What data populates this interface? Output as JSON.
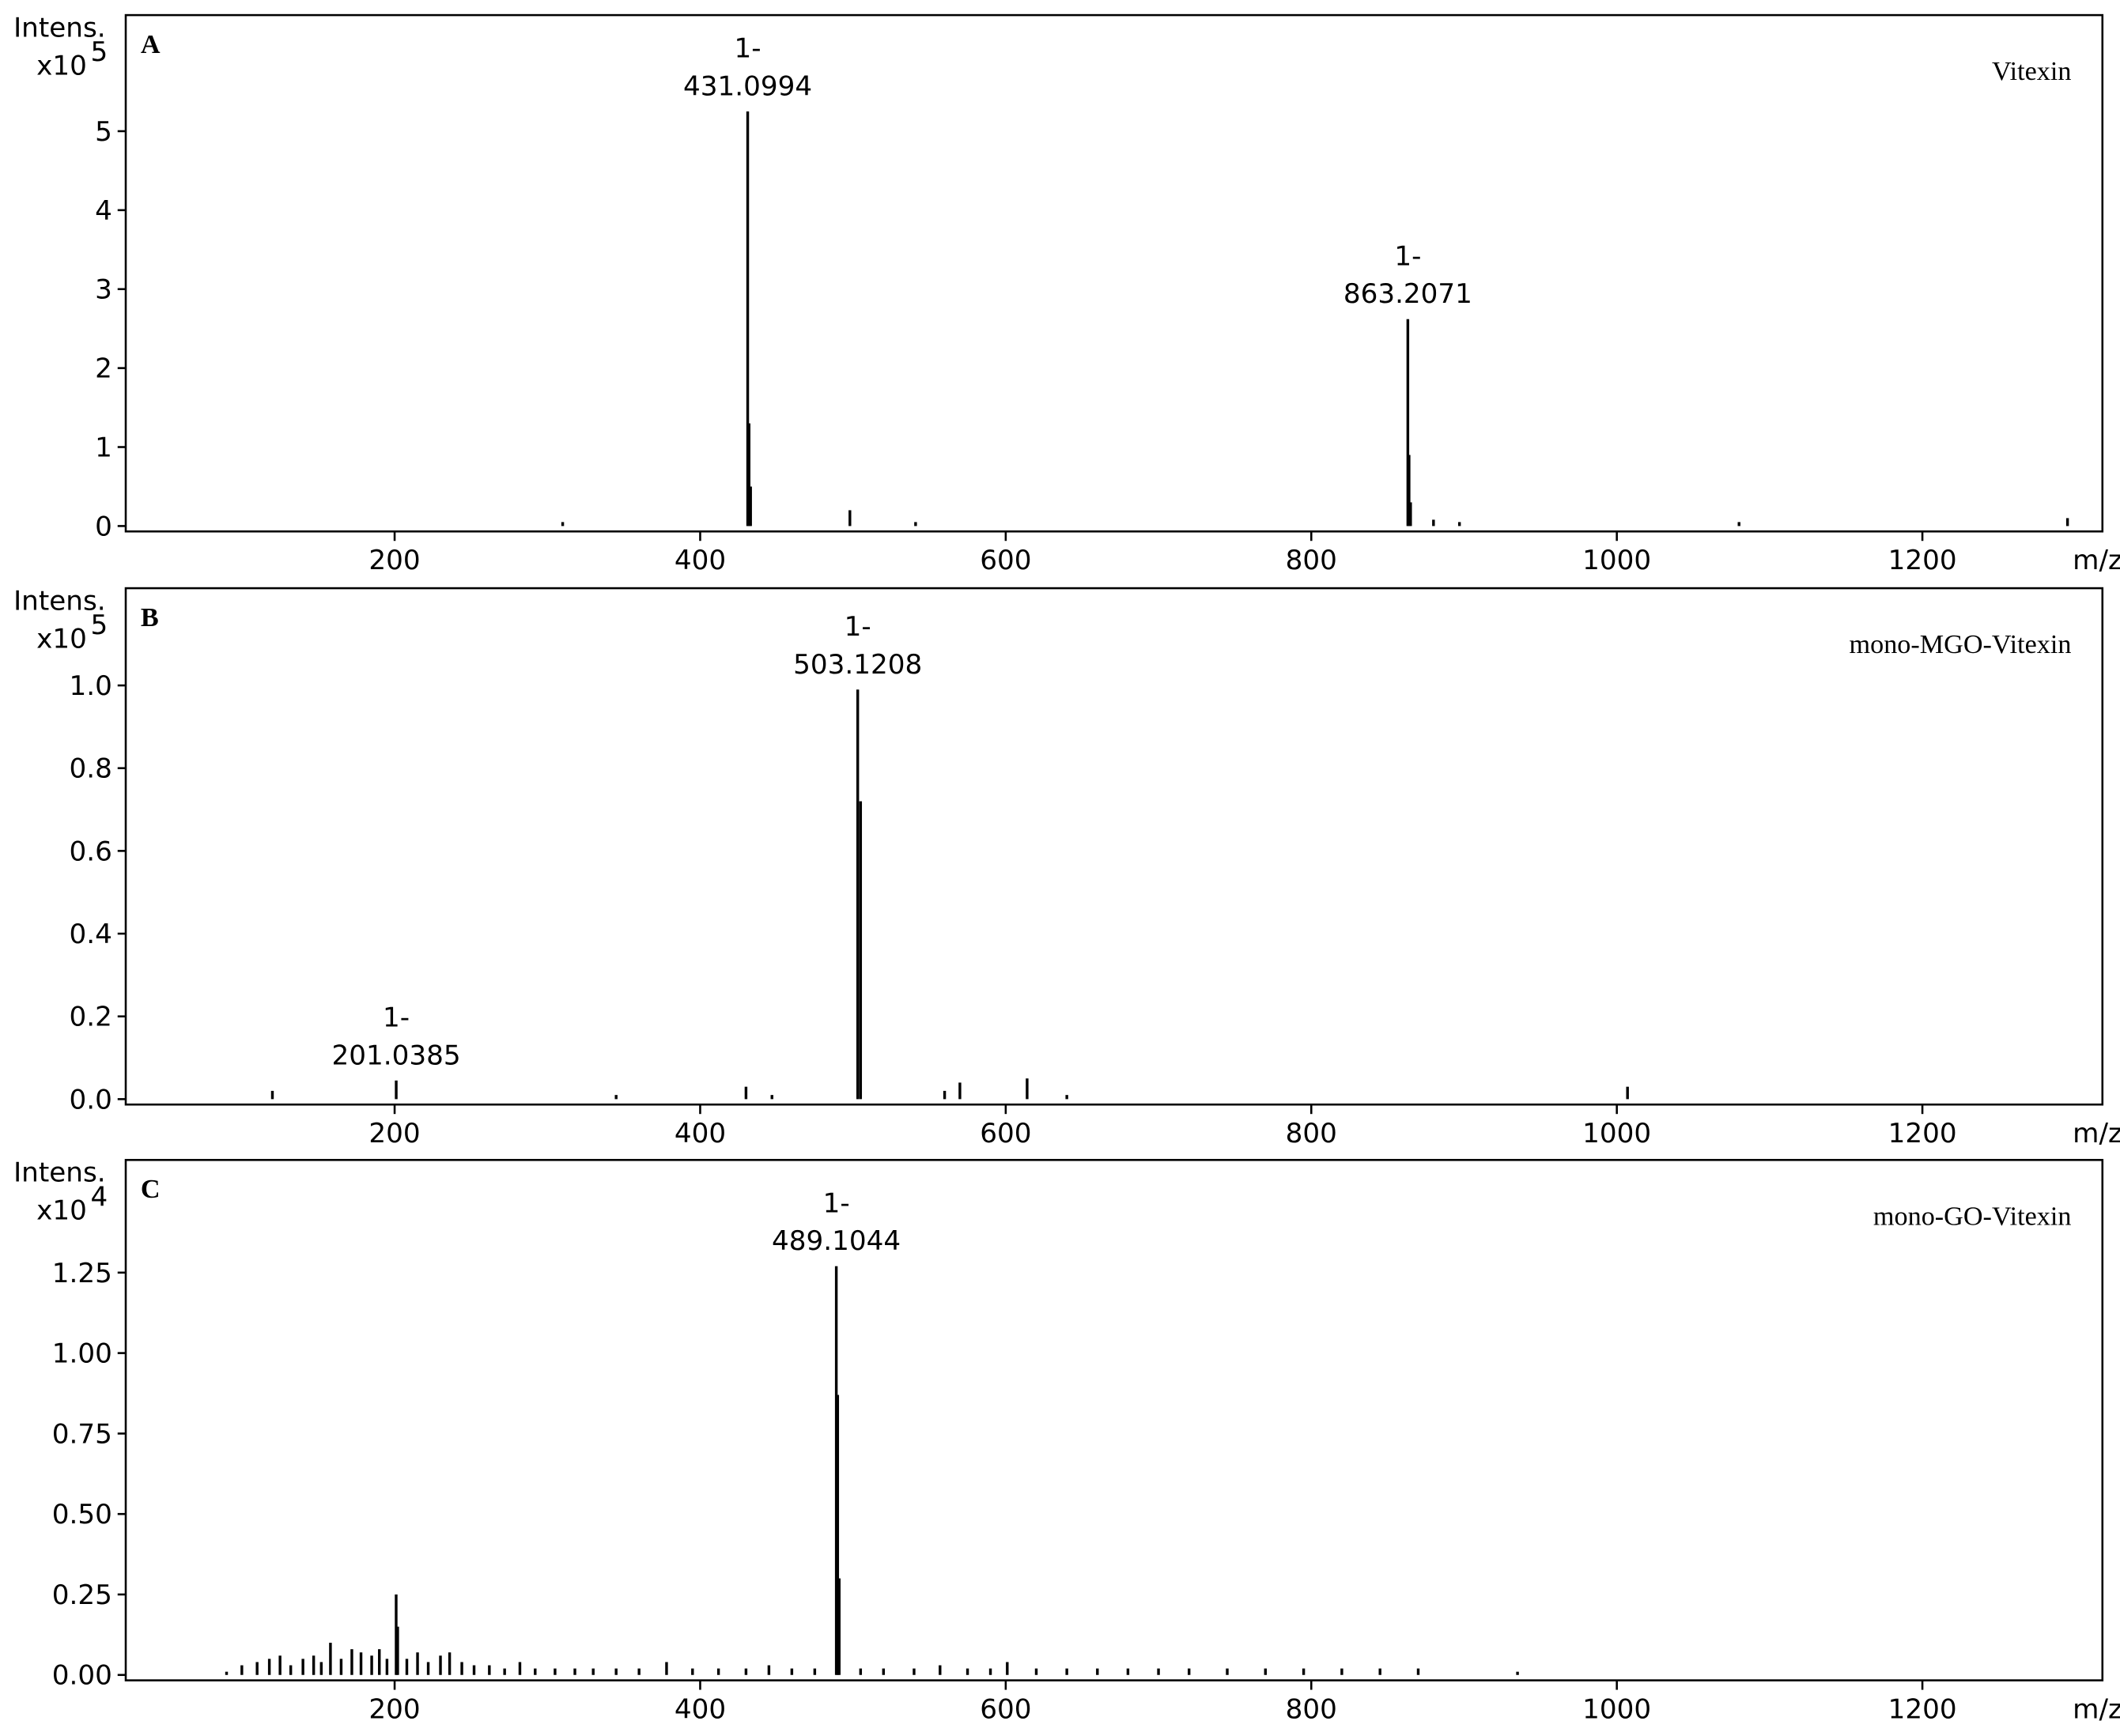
{
  "chart_data": [
    {
      "type": "bar",
      "panel": "A",
      "title": "Vitexin",
      "y_label": "Intens.",
      "y_multiplier": "x10",
      "y_exponent": "5",
      "x_label": "m/z",
      "color": "#000000",
      "x": [
        310,
        431.0994,
        432,
        433,
        498,
        541,
        863.2071,
        864,
        865,
        880,
        897,
        1080,
        1295
      ],
      "values": [
        0.05,
        5.25,
        1.3,
        0.5,
        0.2,
        0.05,
        2.62,
        0.9,
        0.3,
        0.08,
        0.05,
        0.05,
        0.1
      ],
      "annotations": [
        {
          "charge": "1-",
          "x": 431.0994
        },
        {
          "charge": "1-",
          "x": 863.2071
        }
      ],
      "xlim": [
        24,
        1309
      ],
      "xticks": [
        200,
        400,
        600,
        800,
        1000,
        1200
      ],
      "ylim": [
        0,
        6.47
      ],
      "yticks": [
        0,
        1,
        2,
        3,
        4,
        5
      ]
    },
    {
      "type": "bar",
      "panel": "B",
      "title": "mono-MGO-Vitexin",
      "y_label": "Intens.",
      "y_multiplier": "x10",
      "y_exponent": "5",
      "x_label": "m/z",
      "color": "#000000",
      "x": [
        120,
        201.0385,
        345,
        430,
        447,
        503.1208,
        505,
        560,
        570,
        614,
        640,
        1007
      ],
      "values": [
        0.02,
        0.045,
        0.01,
        0.03,
        0.01,
        0.99,
        0.72,
        0.02,
        0.04,
        0.05,
        0.01,
        0.03
      ],
      "annotations": [
        {
          "charge": "1-",
          "x": 201.0385
        },
        {
          "charge": "1-",
          "x": 503.1208
        }
      ],
      "xlim": [
        24,
        1309
      ],
      "xticks": [
        200,
        400,
        600,
        800,
        1000,
        1200
      ],
      "ylim": [
        0,
        1.235
      ],
      "yticks": [
        {
          "value": 0,
          "label": "0.0"
        },
        0.2,
        0.4,
        0.6,
        0.8,
        {
          "value": 1,
          "label": "1.0"
        }
      ]
    },
    {
      "type": "bar",
      "panel": "C",
      "title": "mono-GO-Vitexin",
      "y_label": "Intens.",
      "y_multiplier": "x10",
      "y_exponent": "4",
      "x_label": "m/z",
      "color": "#000000",
      "x": [
        90,
        100,
        110,
        118,
        125,
        132,
        140,
        147,
        152,
        158,
        165,
        172,
        178,
        185,
        190,
        195,
        201,
        202,
        208,
        215,
        222,
        230,
        236,
        244,
        252,
        262,
        272,
        282,
        292,
        305,
        318,
        330,
        345,
        360,
        378,
        395,
        412,
        430,
        445,
        460,
        475,
        489.1044,
        490,
        491,
        505,
        520,
        540,
        557,
        575,
        590,
        601,
        620,
        640,
        660,
        680,
        700,
        720,
        745,
        770,
        795,
        820,
        845,
        870,
        935
      ],
      "values": [
        0.01,
        0.03,
        0.04,
        0.05,
        0.06,
        0.03,
        0.05,
        0.06,
        0.04,
        0.1,
        0.05,
        0.08,
        0.07,
        0.06,
        0.08,
        0.05,
        0.25,
        0.15,
        0.05,
        0.07,
        0.04,
        0.06,
        0.07,
        0.04,
        0.03,
        0.03,
        0.02,
        0.04,
        0.02,
        0.02,
        0.02,
        0.02,
        0.02,
        0.02,
        0.04,
        0.02,
        0.02,
        0.02,
        0.03,
        0.02,
        0.02,
        1.27,
        0.87,
        0.3,
        0.02,
        0.02,
        0.02,
        0.03,
        0.02,
        0.02,
        0.04,
        0.02,
        0.02,
        0.02,
        0.02,
        0.02,
        0.02,
        0.02,
        0.02,
        0.02,
        0.02,
        0.02,
        0.02,
        0.01
      ],
      "annotations": [
        {
          "charge": "1-",
          "x": 489.1044
        }
      ],
      "xlim": [
        24,
        1309
      ],
      "xticks": [
        200,
        400,
        600,
        800,
        1000,
        1200
      ],
      "ylim": [
        0,
        1.6
      ],
      "yticks": [
        {
          "value": 0,
          "label": "0.00"
        },
        0.25,
        {
          "value": 0.5,
          "label": "0.50"
        },
        0.75,
        {
          "value": 1,
          "label": "1.00"
        },
        1.25
      ]
    }
  ]
}
